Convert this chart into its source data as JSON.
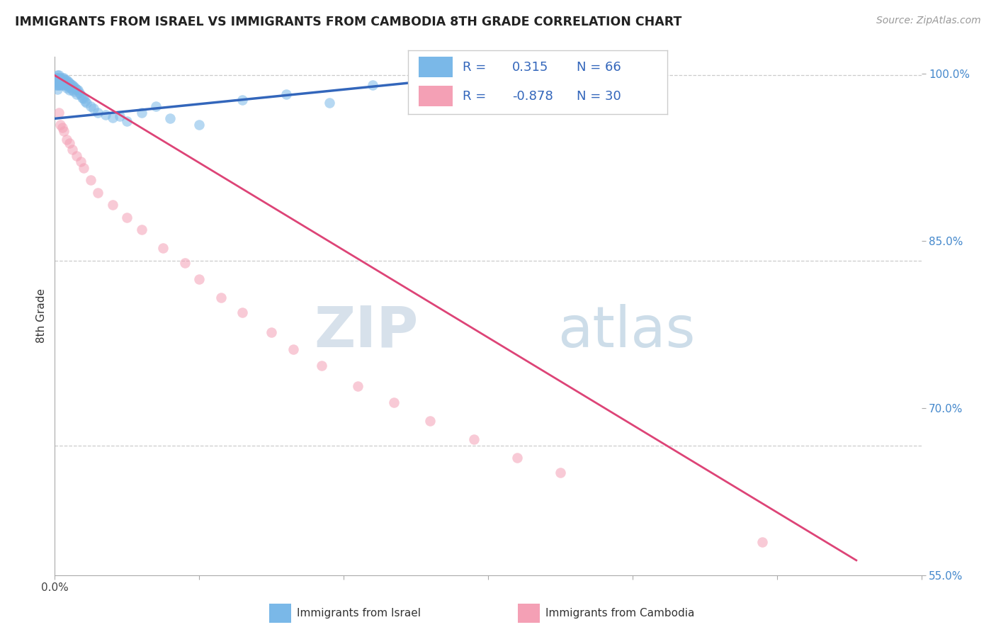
{
  "title": "IMMIGRANTS FROM ISRAEL VS IMMIGRANTS FROM CAMBODIA 8TH GRADE CORRELATION CHART",
  "source_text": "Source: ZipAtlas.com",
  "ylabel": "8th Grade",
  "xlim": [
    0.0,
    0.6
  ],
  "ylim": [
    0.595,
    1.015
  ],
  "ytick_positions": [
    0.55,
    0.7,
    0.85,
    1.0
  ],
  "ytick_labels": [
    "55.0%",
    "70.0%",
    "85.0%",
    "100.0%"
  ],
  "grid_color": "#cccccc",
  "background_color": "#ffffff",
  "israel_color": "#7ab8e8",
  "cambodia_color": "#f4a0b5",
  "israel_line_color": "#3366bb",
  "cambodia_line_color": "#dd4477",
  "israel_R": 0.315,
  "israel_N": 66,
  "cambodia_R": -0.878,
  "cambodia_N": 30,
  "legend_israel_label": "Immigrants from Israel",
  "legend_cambodia_label": "Immigrants from Cambodia",
  "watermark_zip": "ZIP",
  "watermark_atlas": "atlas",
  "israel_line_x": [
    0.0,
    0.28
  ],
  "israel_line_y": [
    0.965,
    0.998
  ],
  "cambodia_line_x": [
    0.0,
    0.555
  ],
  "cambodia_line_y": [
    1.0,
    0.607
  ],
  "israel_x": [
    0.001,
    0.001,
    0.001,
    0.002,
    0.002,
    0.002,
    0.002,
    0.002,
    0.003,
    0.003,
    0.003,
    0.003,
    0.004,
    0.004,
    0.004,
    0.005,
    0.005,
    0.005,
    0.006,
    0.006,
    0.006,
    0.007,
    0.007,
    0.008,
    0.008,
    0.008,
    0.009,
    0.009,
    0.01,
    0.01,
    0.01,
    0.011,
    0.011,
    0.012,
    0.012,
    0.013,
    0.013,
    0.014,
    0.015,
    0.015,
    0.016,
    0.017,
    0.018,
    0.019,
    0.02,
    0.021,
    0.022,
    0.025,
    0.027,
    0.03,
    0.035,
    0.04,
    0.045,
    0.05,
    0.06,
    0.07,
    0.08,
    0.1,
    0.13,
    0.16,
    0.19,
    0.22,
    0.25,
    0.26,
    0.27,
    0.28
  ],
  "israel_y": [
    0.998,
    0.995,
    0.992,
    1.0,
    0.998,
    0.995,
    0.992,
    0.989,
    1.0,
    0.998,
    0.995,
    0.992,
    0.998,
    0.995,
    0.992,
    0.998,
    0.995,
    0.992,
    0.998,
    0.995,
    0.992,
    0.996,
    0.993,
    0.996,
    0.993,
    0.99,
    0.995,
    0.991,
    0.994,
    0.991,
    0.988,
    0.993,
    0.99,
    0.992,
    0.988,
    0.991,
    0.987,
    0.99,
    0.989,
    0.985,
    0.988,
    0.986,
    0.984,
    0.982,
    0.981,
    0.979,
    0.978,
    0.975,
    0.973,
    0.97,
    0.968,
    0.966,
    0.967,
    0.963,
    0.97,
    0.975,
    0.965,
    0.96,
    0.98,
    0.985,
    0.978,
    0.992,
    0.98,
    0.995,
    0.998,
    1.0
  ],
  "cambodia_x": [
    0.003,
    0.004,
    0.005,
    0.006,
    0.008,
    0.01,
    0.012,
    0.015,
    0.018,
    0.02,
    0.025,
    0.03,
    0.04,
    0.05,
    0.06,
    0.075,
    0.09,
    0.1,
    0.115,
    0.13,
    0.15,
    0.165,
    0.185,
    0.21,
    0.235,
    0.26,
    0.29,
    0.32,
    0.35,
    0.49
  ],
  "cambodia_y": [
    0.97,
    0.96,
    0.958,
    0.955,
    0.948,
    0.945,
    0.94,
    0.935,
    0.93,
    0.925,
    0.915,
    0.905,
    0.895,
    0.885,
    0.875,
    0.86,
    0.848,
    0.835,
    0.82,
    0.808,
    0.792,
    0.778,
    0.765,
    0.748,
    0.735,
    0.72,
    0.705,
    0.69,
    0.678,
    0.622
  ]
}
